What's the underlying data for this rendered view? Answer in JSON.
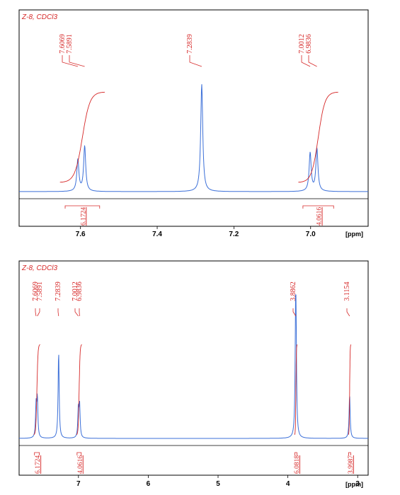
{
  "chart_data": [
    {
      "type": "line",
      "sample_label": "Z-8, CDCl3",
      "x_unit_label": "[ppm]",
      "x_direction": "reversed",
      "xlim": [
        7.76,
        6.85
      ],
      "x_ticks": [
        "7.6",
        "7.4",
        "7.2",
        "7.0"
      ],
      "peak_labels": [
        "7.6069",
        "7.5891",
        "7.2839",
        "7.0012",
        "6.9836"
      ],
      "peaks": [
        {
          "ppm": 7.6069,
          "intensity": 0.28
        },
        {
          "ppm": 7.5891,
          "intensity": 0.4
        },
        {
          "ppm": 7.2839,
          "intensity": 0.95
        },
        {
          "ppm": 7.0012,
          "intensity": 0.34
        },
        {
          "ppm": 6.9836,
          "intensity": 0.38
        }
      ],
      "integrals": [
        {
          "from": 7.64,
          "to": 7.55,
          "value": "6.1724"
        },
        {
          "from": 7.02,
          "to": 6.94,
          "value": "4.0616"
        }
      ]
    },
    {
      "type": "line",
      "sample_label": "Z-8, CDCl3",
      "x_unit_label": "[ppm]",
      "x_direction": "reversed",
      "xlim": [
        7.85,
        2.85
      ],
      "x_ticks": [
        "7",
        "6",
        "5",
        "4",
        "3"
      ],
      "peak_labels": [
        "7.6069",
        "7.5891",
        "7.2839",
        "7.0012",
        "6.9836",
        "3.8862",
        "3.1154"
      ],
      "peaks": [
        {
          "ppm": 7.6069,
          "intensity": 0.22
        },
        {
          "ppm": 7.5891,
          "intensity": 0.27
        },
        {
          "ppm": 7.2839,
          "intensity": 0.6
        },
        {
          "ppm": 7.0012,
          "intensity": 0.2
        },
        {
          "ppm": 6.9836,
          "intensity": 0.22
        },
        {
          "ppm": 3.8862,
          "intensity": 1.2
        },
        {
          "ppm": 3.1154,
          "intensity": 0.3
        }
      ],
      "integrals": [
        {
          "from": 7.63,
          "to": 7.56,
          "value": "6.1724"
        },
        {
          "from": 7.02,
          "to": 6.96,
          "value": "4.0616"
        },
        {
          "from": 3.9,
          "to": 3.87,
          "value": "6.0818"
        },
        {
          "from": 3.13,
          "to": 3.1,
          "value": "3.9987"
        }
      ]
    }
  ]
}
